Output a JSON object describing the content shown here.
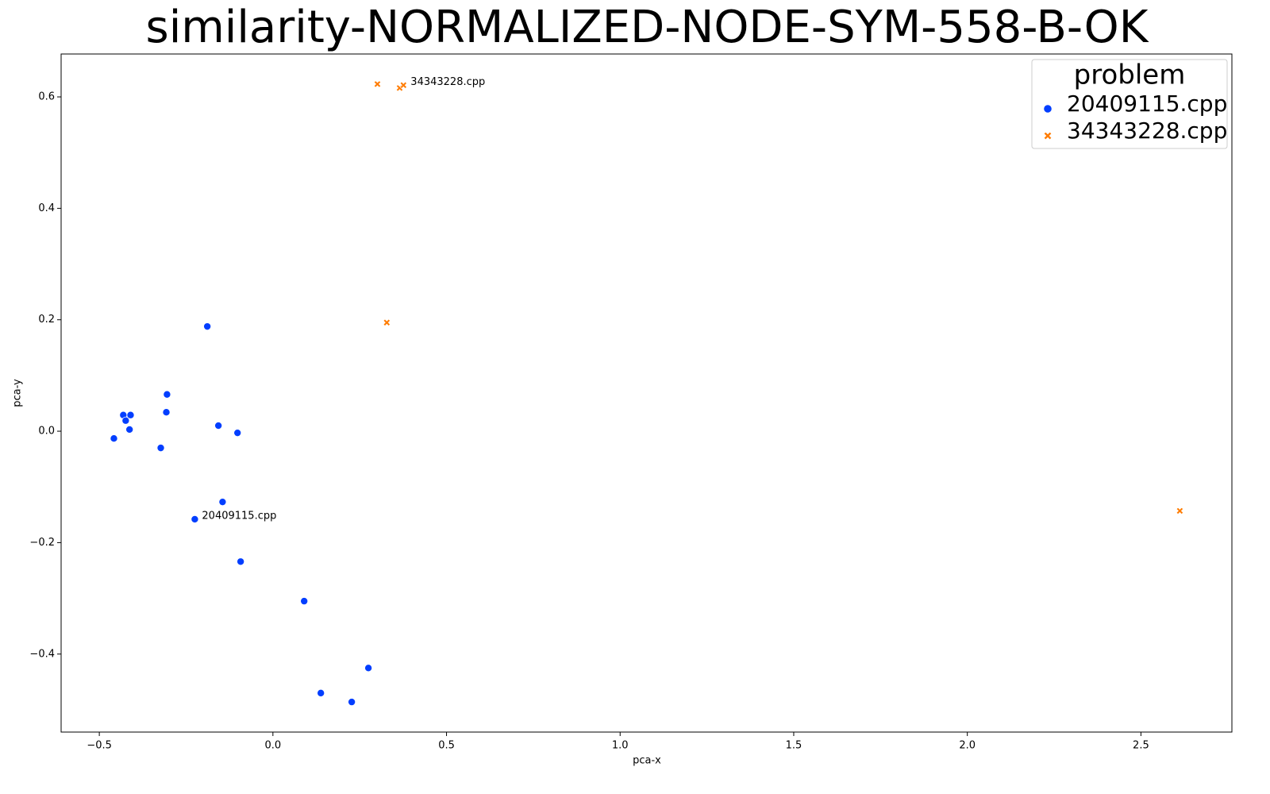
{
  "chart_data": {
    "type": "scatter",
    "title": "similarity-NORMALIZED-NODE-SYM-558-B-OK",
    "x_label": "pca-x",
    "y_label": "pca-y",
    "xlim": [
      -0.61,
      2.762
    ],
    "ylim": [
      -0.54,
      0.677
    ],
    "xticks": [
      {
        "value": -0.5,
        "label": "−0.5"
      },
      {
        "value": 0,
        "label": "0.0"
      },
      0.5,
      {
        "value": 1,
        "label": "1.0"
      },
      1.5,
      {
        "value": 2,
        "label": "2.0"
      },
      2.5
    ],
    "yticks": [
      {
        "value": -0.4,
        "label": "−0.4"
      },
      {
        "value": -0.2,
        "label": "−0.2"
      },
      {
        "value": 0,
        "label": "0.0"
      },
      0.2,
      0.4,
      0.6
    ],
    "grid": false,
    "legend_title": "problem",
    "legend_position": "upper-right",
    "series": [
      {
        "name": "20409115.cpp",
        "color": "#023eff",
        "marker": "circle",
        "x": [
          -0.189,
          -0.305,
          -0.307,
          -0.431,
          -0.41,
          -0.424,
          -0.413,
          -0.458,
          -0.323,
          -0.157,
          -0.102,
          -0.145,
          -0.225,
          -0.093,
          0.09,
          0.275,
          0.138,
          0.227
        ],
        "values": [
          0.188,
          0.066,
          0.034,
          0.029,
          0.029,
          0.019,
          0.003,
          -0.013,
          -0.03,
          0.01,
          -0.003,
          -0.127,
          -0.158,
          -0.234,
          -0.305,
          -0.425,
          -0.47,
          -0.486
        ]
      },
      {
        "name": "34343228.cpp",
        "color": "#ff7c00",
        "marker": "x",
        "x": [
          0.301,
          0.365,
          0.376,
          0.328,
          2.612
        ],
        "values": [
          0.623,
          0.616,
          0.621,
          0.195,
          -0.143
        ]
      }
    ],
    "annotations": [
      {
        "text": "34343228.cpp",
        "x": 0.376,
        "y": 0.621
      },
      {
        "text": "20409115.cpp",
        "x": -0.225,
        "y": -0.158
      }
    ]
  }
}
